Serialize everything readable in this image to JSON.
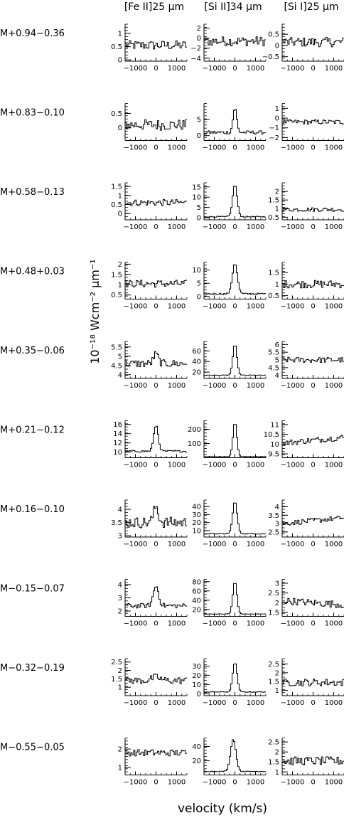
{
  "figure": {
    "column_headers": [
      "[Fe II]25 μm",
      "[Si II]34 μm",
      "[Si I]25 μm"
    ],
    "row_labels": [
      "M+0.94−0.36",
      "M+0.83−0.10",
      "M+0.58−0.13",
      "M+0.48+0.03",
      "M+0.35−0.06",
      "M+0.21−0.12",
      "M+0.16−0.10",
      "M−0.15−0.07",
      "M−0.32−0.19",
      "M−0.55−0.05"
    ],
    "ylabel": "10⁻¹⁸ Wcm⁻² μm⁻¹",
    "xlabel": "velocity (km/s)",
    "line_color": "#000000"
  },
  "chart_data": {
    "type": "line",
    "xlabel": "velocity (km/s)",
    "ylabel": "10⁻¹⁸ Wcm⁻² μm⁻¹",
    "xlim": [
      -1500,
      1500
    ],
    "x_ticks": [
      -1000,
      0,
      1000
    ],
    "columns": [
      "[Fe II]25 μm",
      "[Si II]34 μm",
      "[Si I]25 μm"
    ],
    "rows": [
      "M+0.94−0.36",
      "M+0.83−0.10",
      "M+0.58−0.13",
      "M+0.48+0.03",
      "M+0.35−0.06",
      "M+0.21−0.12",
      "M+0.16−0.10",
      "M−0.15−0.07",
      "M−0.32−0.19",
      "M−0.55−0.05"
    ],
    "panels": [
      [
        {
          "ylim": [
            -0.05,
            1.35
          ],
          "yticks": [
            0,
            0.5,
            1
          ],
          "yticklabels": [
            "0",
            "0.5",
            "1"
          ],
          "baseline": 0.55,
          "noise": 0.3,
          "peak": 0,
          "width": 200
        },
        {
          "ylim": [
            -4.6,
            2.8
          ],
          "yticks": [
            -4,
            -2,
            0,
            2
          ],
          "yticklabels": [
            "−4",
            "−2",
            "0",
            "2"
          ],
          "baseline": -0.6,
          "noise": 1.6,
          "peak": 0,
          "width": 200
        },
        {
          "ylim": [
            -0.7,
            0.95
          ],
          "yticks": [
            -0.5,
            0,
            0.5
          ],
          "yticklabels": [
            "−0.5",
            "0",
            "0.5"
          ],
          "baseline": 0.15,
          "noise": 0.35,
          "peak": 0,
          "width": 200
        }
      ],
      [
        {
          "ylim": [
            -0.45,
            0.85
          ],
          "yticks": [
            0,
            0.5
          ],
          "yticklabels": [
            "0",
            "0.5"
          ],
          "baseline": 0.1,
          "noise": 0.32,
          "peak": 0,
          "width": 200
        },
        {
          "ylim": [
            -1.5,
            10
          ],
          "yticks": [
            0,
            5
          ],
          "yticklabels": [
            "0",
            "5"
          ],
          "baseline": 1.0,
          "noise": 0.9,
          "peak": 7.5,
          "width": 90
        },
        {
          "ylim": [
            -2.3,
            1.5
          ],
          "yticks": [
            -2,
            -1,
            0,
            1
          ],
          "yticklabels": [
            "−2",
            "−1",
            "0",
            "1"
          ],
          "baseline": -0.4,
          "noise": 0.4,
          "peak": 0,
          "width": 200
        }
      ],
      [
        {
          "ylim": [
            -0.35,
            1.7
          ],
          "yticks": [
            0,
            0.5,
            1,
            1.5
          ],
          "yticklabels": [
            "0",
            "0.5",
            "1",
            "1.5"
          ],
          "baseline": 0.6,
          "noise": 0.3,
          "peak": 0,
          "width": 200
        },
        {
          "ylim": [
            -1,
            17
          ],
          "yticks": [
            0,
            5,
            10,
            15
          ],
          "yticklabels": [
            "0",
            "5",
            "10",
            "15"
          ],
          "baseline": 0.5,
          "noise": 0.4,
          "peak": 15.5,
          "width": 110
        },
        {
          "ylim": [
            0.35,
            2.5
          ],
          "yticks": [
            0.5,
            1,
            1.5,
            2
          ],
          "yticklabels": [
            "0.5",
            "1",
            "1.5",
            "2"
          ],
          "baseline": 0.95,
          "noise": 0.2,
          "peak": 0,
          "width": 200
        }
      ],
      [
        {
          "ylim": [
            0.3,
            2.1
          ],
          "yticks": [
            0.5,
            1,
            1.5,
            2
          ],
          "yticklabels": [
            "0.5",
            "1",
            "1.5",
            "2"
          ],
          "baseline": 1.05,
          "noise": 0.3,
          "peak": 0,
          "width": 200
        },
        {
          "ylim": [
            -1,
            13
          ],
          "yticks": [
            0,
            5,
            10
          ],
          "yticklabels": [
            "0",
            "5",
            "10"
          ],
          "baseline": 1.0,
          "noise": 0.5,
          "peak": 11.5,
          "width": 120
        },
        {
          "ylim": [
            0.35,
            1.95
          ],
          "yticks": [
            0.5,
            1,
            1.5
          ],
          "yticklabels": [
            "0.5",
            "1",
            "1.5"
          ],
          "baseline": 1.0,
          "noise": 0.28,
          "peak": 0,
          "width": 200
        }
      ],
      [
        {
          "ylim": [
            3.8,
            5.8
          ],
          "yticks": [
            4,
            4.5,
            5,
            5.5
          ],
          "yticklabels": [
            "4",
            "4.5",
            "5",
            "5.5"
          ],
          "baseline": 4.6,
          "noise": 0.35,
          "peak": 0.5,
          "width": 120
        },
        {
          "ylim": [
            8,
            78
          ],
          "yticks": [
            20,
            40,
            60
          ],
          "yticklabels": [
            "20",
            "40",
            "60"
          ],
          "baseline": 14,
          "noise": 1.0,
          "peak": 58,
          "width": 100
        },
        {
          "ylim": [
            3.8,
            6.2
          ],
          "yticks": [
            4,
            4.5,
            5,
            5.5,
            6
          ],
          "yticklabels": [
            "4",
            "4.5",
            "5",
            "5.5",
            "6"
          ],
          "baseline": 5.0,
          "noise": 0.3,
          "peak": 0,
          "width": 200
        }
      ],
      [
        {
          "ylim": [
            8.8,
            16.8
          ],
          "yticks": [
            10,
            12,
            14,
            16
          ],
          "yticklabels": [
            "10",
            "12",
            "14",
            "16"
          ],
          "baseline": 10.2,
          "noise": 0.35,
          "peak": 5.6,
          "width": 110
        },
        {
          "ylim": [
            0,
            260
          ],
          "yticks": [
            100,
            200
          ],
          "yticklabels": [
            "100",
            "200"
          ],
          "baseline": 8,
          "noise": 2,
          "peak": 240,
          "width": 95
        },
        {
          "ylim": [
            9.3,
            11.2
          ],
          "yticks": [
            9.5,
            10,
            10.5,
            11
          ],
          "yticklabels": [
            "9.5",
            "10",
            "10.5",
            "11"
          ],
          "baseline": 10.05,
          "noise": 0.25,
          "peak": 0,
          "width": 200,
          "slope": 0.3
        }
      ],
      [
        {
          "ylim": [
            2.95,
            4.35
          ],
          "yticks": [
            3,
            3.5,
            4
          ],
          "yticklabels": [
            "3",
            "3.5",
            "4"
          ],
          "baseline": 3.5,
          "noise": 0.35,
          "peak": 0.6,
          "width": 120
        },
        {
          "ylim": [
            2,
            48
          ],
          "yticks": [
            10,
            20,
            30,
            40
          ],
          "yticklabels": [
            "10",
            "20",
            "30",
            "40"
          ],
          "baseline": 6,
          "noise": 0.6,
          "peak": 40,
          "width": 110
        },
        {
          "ylim": [
            2.2,
            4.4
          ],
          "yticks": [
            2.5,
            3,
            3.5,
            4
          ],
          "yticklabels": [
            "2.5",
            "3",
            "3.5",
            "4"
          ],
          "baseline": 3.0,
          "noise": 0.25,
          "peak": 0,
          "width": 200,
          "slope": 0.35
        }
      ],
      [
        {
          "ylim": [
            1.6,
            4.4
          ],
          "yticks": [
            2,
            3,
            4
          ],
          "yticklabels": [
            "2",
            "3",
            "4"
          ],
          "baseline": 2.4,
          "noise": 0.3,
          "peak": 1.5,
          "width": 130
        },
        {
          "ylim": [
            5,
            85
          ],
          "yticks": [
            20,
            40,
            60,
            80
          ],
          "yticklabels": [
            "20",
            "40",
            "60",
            "80"
          ],
          "baseline": 10,
          "noise": 0.8,
          "peak": 70,
          "width": 100
        },
        {
          "ylim": [
            1.3,
            3.2
          ],
          "yticks": [
            1.5,
            2,
            2.5,
            3
          ],
          "yticklabels": [
            "1.5",
            "2",
            "2.5",
            "3"
          ],
          "baseline": 2.1,
          "noise": 0.3,
          "peak": 0,
          "width": 200,
          "slope": -0.2
        }
      ],
      [
        {
          "ylim": [
            0.5,
            2.7
          ],
          "yticks": [
            1,
            1.5,
            2,
            2.5
          ],
          "yticklabels": [
            "1",
            "1.5",
            "2",
            "2.5"
          ],
          "baseline": 1.4,
          "noise": 0.35,
          "peak": 0.2,
          "width": 200
        },
        {
          "ylim": [
            -2,
            38
          ],
          "yticks": [
            0,
            10,
            20,
            30
          ],
          "yticklabels": [
            "0",
            "10",
            "20",
            "30"
          ],
          "baseline": 2,
          "noise": 0.7,
          "peak": 32,
          "width": 105
        },
        {
          "ylim": [
            0.7,
            2.8
          ],
          "yticks": [
            1,
            1.5,
            2,
            2.5
          ],
          "yticklabels": [
            "1",
            "1.5",
            "2",
            "2.5"
          ],
          "baseline": 1.45,
          "noise": 0.35,
          "peak": 0,
          "width": 200
        }
      ],
      [
        {
          "ylim": [
            0.6,
            2.6
          ],
          "yticks": [
            1,
            2
          ],
          "yticklabels": [
            "1",
            "2"
          ],
          "baseline": 1.8,
          "noise": 0.3,
          "peak": 0,
          "width": 200
        },
        {
          "ylim": [
            0,
            52
          ],
          "yticks": [
            20,
            40
          ],
          "yticklabels": [
            "20",
            "40"
          ],
          "baseline": 5,
          "noise": 0.7,
          "peak": 45,
          "width": 130,
          "center": -80
        },
        {
          "ylim": [
            0.85,
            2.7
          ],
          "yticks": [
            1,
            1.5,
            2,
            2.5
          ],
          "yticklabels": [
            "1",
            "1.5",
            "2",
            "2.5"
          ],
          "baseline": 1.55,
          "noise": 0.35,
          "peak": 0,
          "width": 200
        }
      ]
    ]
  }
}
